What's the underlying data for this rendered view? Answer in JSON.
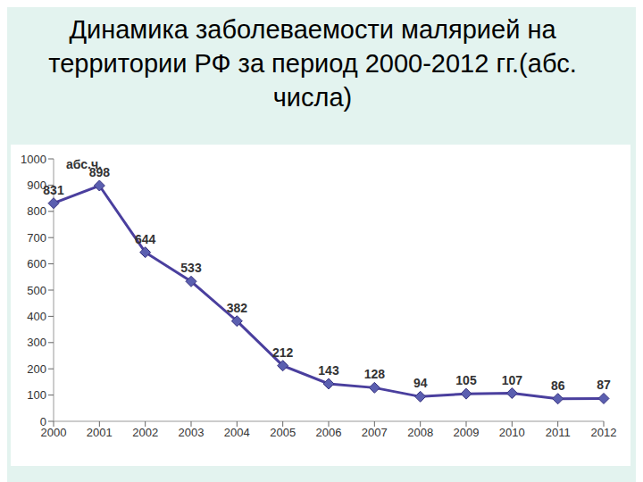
{
  "chart_data": {
    "type": "line",
    "title": "Динамика заболеваемости малярией на территории РФ за период 2000-2012 гг.(абс. числа)",
    "y_label": "абс.ч.",
    "categories": [
      "2000",
      "2001",
      "2002",
      "2003",
      "2004",
      "2005",
      "2006",
      "2007",
      "2008",
      "2009",
      "2010",
      "2011",
      "2012"
    ],
    "values": [
      831,
      898,
      644,
      533,
      382,
      212,
      143,
      128,
      94,
      105,
      107,
      86,
      87
    ],
    "color": "#4a3f9e",
    "marker": "diamond",
    "ylim": [
      0,
      1000
    ],
    "yticks": [
      0,
      100,
      200,
      300,
      400,
      500,
      600,
      700,
      800,
      900,
      1000
    ],
    "grid": false,
    "data_labels": true
  }
}
